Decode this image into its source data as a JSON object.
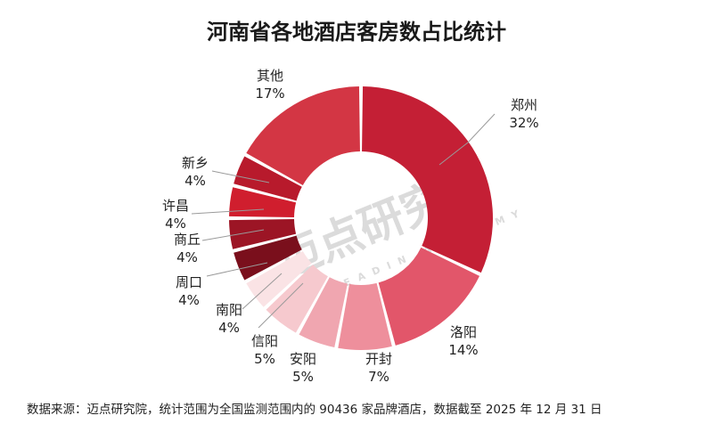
{
  "title": "河南省各地酒店客房数占比统计",
  "source": "数据来源：迈点研究院，统计范围为全国监测范围内的 90436 家品牌酒店，数据截至 2025 年 12 月 31 日",
  "watermark": {
    "main": "迈点研究院",
    "sub": "MEADIN ACADEMY"
  },
  "chart_data": {
    "type": "pie",
    "variant": "donut",
    "title": "河南省各地酒店客房数占比统计",
    "slices": [
      {
        "label": "郑州",
        "value": 32,
        "value_label": "32%",
        "color": "#C41F35"
      },
      {
        "label": "洛阳",
        "value": 14,
        "value_label": "14%",
        "color": "#E2566A"
      },
      {
        "label": "开封",
        "value": 7,
        "value_label": "7%",
        "color": "#EE8F9C"
      },
      {
        "label": "安阳",
        "value": 5,
        "value_label": "5%",
        "color": "#F0A6B0"
      },
      {
        "label": "信阳",
        "value": 5,
        "value_label": "5%",
        "color": "#F6C9CE"
      },
      {
        "label": "南阳",
        "value": 4,
        "value_label": "4%",
        "color": "#FAE3E5"
      },
      {
        "label": "周口",
        "value": 4,
        "value_label": "4%",
        "color": "#7A0F1C"
      },
      {
        "label": "商丘",
        "value": 4,
        "value_label": "4%",
        "color": "#9C1525"
      },
      {
        "label": "许昌",
        "value": 4,
        "value_label": "4%",
        "color": "#D01E2E"
      },
      {
        "label": "新乡",
        "value": 4,
        "value_label": "4%",
        "color": "#B81A2C"
      },
      {
        "label": "其他",
        "value": 17,
        "value_label": "17%",
        "color": "#D33644"
      }
    ]
  }
}
